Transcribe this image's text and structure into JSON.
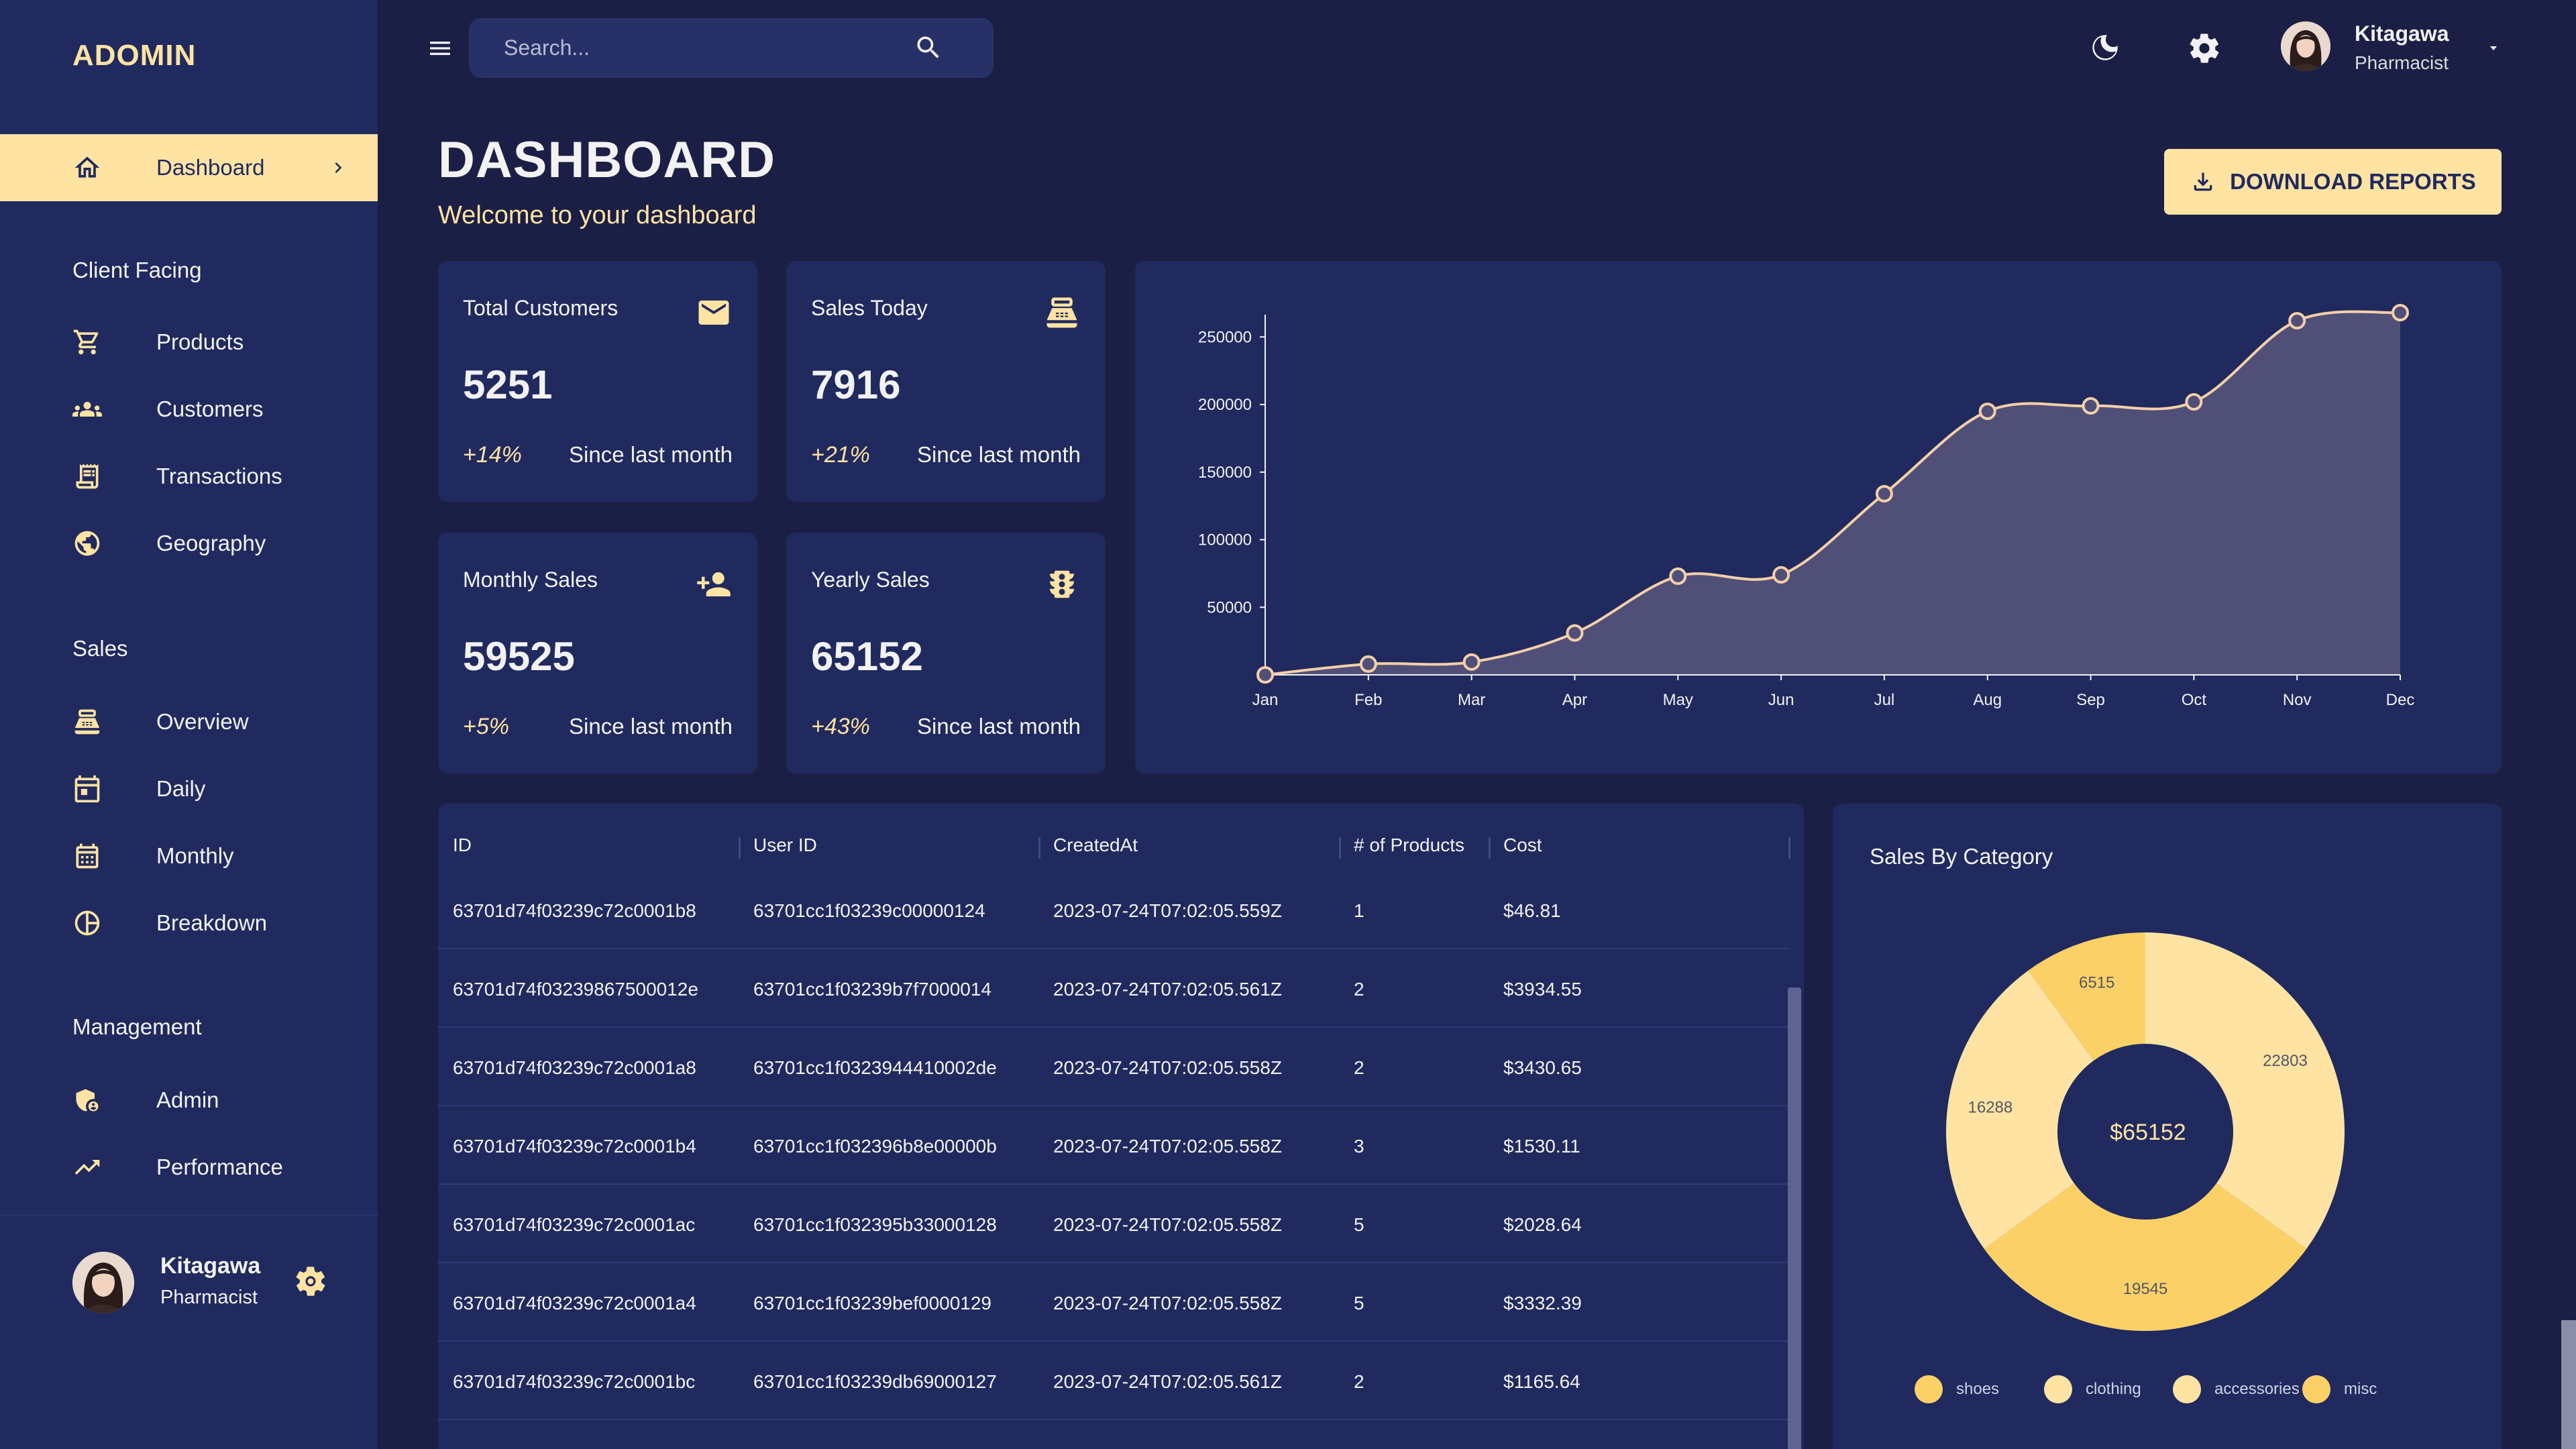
{
  "app": {
    "brand": "ADOMIN"
  },
  "search": {
    "placeholder": "Search..."
  },
  "user": {
    "name": "Kitagawa",
    "role": "Pharmacist"
  },
  "sidebar": {
    "dashboard": "Dashboard",
    "sections": {
      "client": "Client Facing",
      "sales": "Sales",
      "management": "Management"
    },
    "items": {
      "products": "Products",
      "customers": "Customers",
      "transactions": "Transactions",
      "geography": "Geography",
      "overview": "Overview",
      "daily": "Daily",
      "monthly": "Monthly",
      "breakdown": "Breakdown",
      "admin": "Admin",
      "performance": "Performance"
    }
  },
  "header": {
    "title": "DASHBOARD",
    "subtitle": "Welcome to your dashboard",
    "download_label": "DOWNLOAD REPORTS"
  },
  "stats": [
    {
      "title": "Total Customers",
      "value": "5251",
      "increase": "+14%",
      "since": "Since last month",
      "icon": "mail-icon"
    },
    {
      "title": "Sales Today",
      "value": "7916",
      "increase": "+21%",
      "since": "Since last month",
      "icon": "point-of-sale-icon"
    },
    {
      "title": "Monthly Sales",
      "value": "59525",
      "increase": "+5%",
      "since": "Since last month",
      "icon": "person-add-icon"
    },
    {
      "title": "Yearly Sales",
      "value": "65152",
      "increase": "+43%",
      "since": "Since last month",
      "icon": "traffic-icon"
    }
  ],
  "colors": {
    "accent": "#ffe3a3",
    "panel": "#202a5e",
    "background": "#1b1f45"
  },
  "chart_data": [
    {
      "type": "area",
      "categories": [
        "Jan",
        "Feb",
        "Mar",
        "Apr",
        "May",
        "Jun",
        "Jul",
        "Aug",
        "Sep",
        "Oct",
        "Nov",
        "Dec"
      ],
      "values": [
        0,
        8000,
        9500,
        31000,
        73000,
        74000,
        134000,
        195000,
        199000,
        202000,
        262000,
        268000
      ],
      "yticks": [
        "50000",
        "100000",
        "150000",
        "200000",
        "250000"
      ],
      "ylim": [
        0,
        270000
      ],
      "grid": false
    },
    {
      "type": "pie",
      "title": "Sales By Category",
      "center_label": "$65152",
      "slices": [
        {
          "name": "shoes",
          "value": 19545,
          "color": "#fbd167"
        },
        {
          "name": "clothing",
          "value": 22803,
          "color": "#ffe3a3"
        },
        {
          "name": "accessories",
          "value": 16288,
          "color": "#ffe3a3"
        },
        {
          "name": "misc",
          "value": 6515,
          "color": "#fbd167"
        }
      ]
    }
  ],
  "table": {
    "columns": [
      "ID",
      "User ID",
      "CreatedAt",
      "# of Products",
      "Cost"
    ],
    "rows": [
      [
        "63701d74f03239c72c0001b8",
        "63701cc1f03239c00000124",
        "2023-07-24T07:02:05.559Z",
        "1",
        "$46.81"
      ],
      [
        "63701d74f03239867500012e",
        "63701cc1f03239b7f7000014",
        "2023-07-24T07:02:05.561Z",
        "2",
        "$3934.55"
      ],
      [
        "63701d74f03239c72c0001a8",
        "63701cc1f0323944410002de",
        "2023-07-24T07:02:05.558Z",
        "2",
        "$3430.65"
      ],
      [
        "63701d74f03239c72c0001b4",
        "63701cc1f032396b8e00000b",
        "2023-07-24T07:02:05.558Z",
        "3",
        "$1530.11"
      ],
      [
        "63701d74f03239c72c0001ac",
        "63701cc1f032395b33000128",
        "2023-07-24T07:02:05.558Z",
        "5",
        "$2028.64"
      ],
      [
        "63701d74f03239c72c0001a4",
        "63701cc1f03239bef0000129",
        "2023-07-24T07:02:05.558Z",
        "5",
        "$3332.39"
      ],
      [
        "63701d74f03239c72c0001bc",
        "63701cc1f03239db69000127",
        "2023-07-24T07:02:05.561Z",
        "2",
        "$1165.64"
      ]
    ]
  }
}
